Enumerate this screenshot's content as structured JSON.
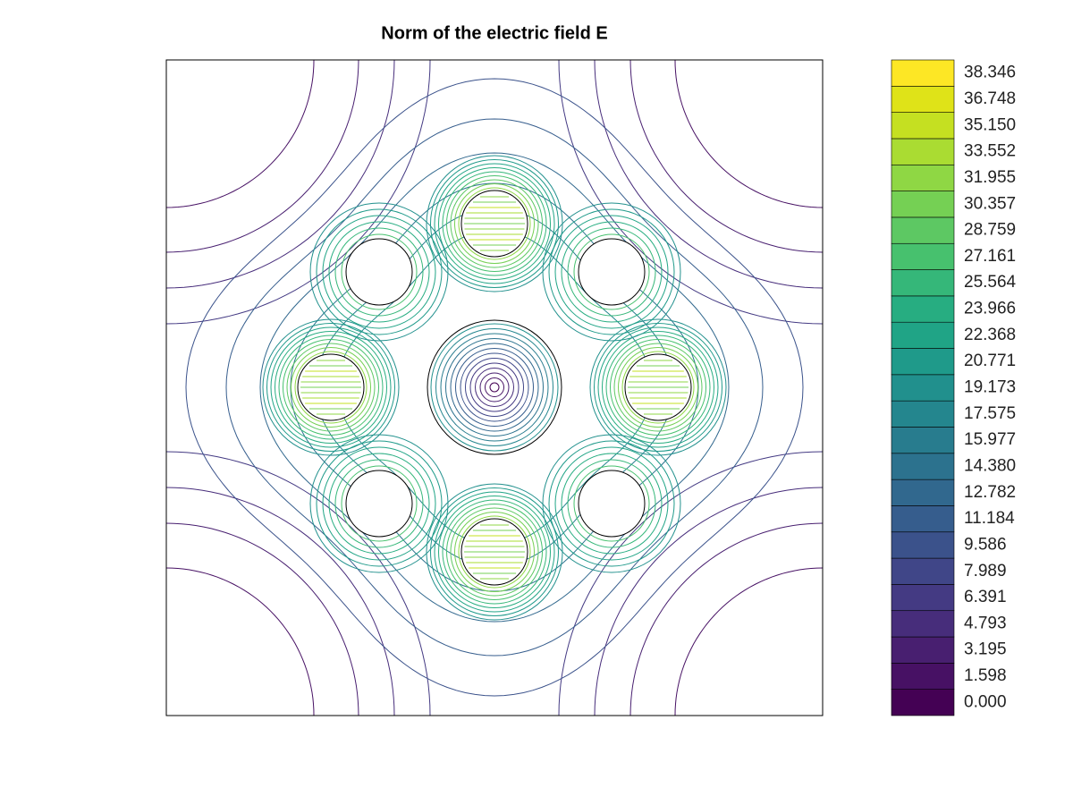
{
  "chart_data": {
    "type": "contour",
    "title": "Norm of the electric field E",
    "levels": [
      {
        "value": 0,
        "label": "0.000"
      },
      {
        "value": 1.598,
        "label": "1.598"
      },
      {
        "value": 3.195,
        "label": "3.195"
      },
      {
        "value": 4.793,
        "label": "4.793"
      },
      {
        "value": 6.391,
        "label": "6.391"
      },
      {
        "value": 7.989,
        "label": "7.989"
      },
      {
        "value": 9.586,
        "label": "9.586"
      },
      {
        "value": 11.184,
        "label": "11.184"
      },
      {
        "value": 12.782,
        "label": "12.782"
      },
      {
        "value": 14.38,
        "label": "14.380"
      },
      {
        "value": 15.977,
        "label": "15.977"
      },
      {
        "value": 17.575,
        "label": "17.575"
      },
      {
        "value": 19.173,
        "label": "19.173"
      },
      {
        "value": 20.771,
        "label": "20.771"
      },
      {
        "value": 22.368,
        "label": "22.368"
      },
      {
        "value": 23.966,
        "label": "23.966"
      },
      {
        "value": 25.564,
        "label": "25.564"
      },
      {
        "value": 27.161,
        "label": "27.161"
      },
      {
        "value": 28.759,
        "label": "28.759"
      },
      {
        "value": 30.357,
        "label": "30.357"
      },
      {
        "value": 31.955,
        "label": "31.955"
      },
      {
        "value": 33.552,
        "label": "33.552"
      },
      {
        "value": 35.15,
        "label": "35.150"
      },
      {
        "value": 36.748,
        "label": "36.748"
      },
      {
        "value": 38.346,
        "label": "38.346"
      }
    ],
    "colors": [
      "#440154",
      "#471164",
      "#481f70",
      "#472d7b",
      "#443a83",
      "#404688",
      "#3b528b",
      "#365d8d",
      "#31688e",
      "#2c728e",
      "#287c8e",
      "#24868e",
      "#21908d",
      "#1f9a8a",
      "#20a486",
      "#27ad81",
      "#35b779",
      "#47c16e",
      "#5dc863",
      "#75d054",
      "#8fd744",
      "#aadc32",
      "#c5e021",
      "#dfe318",
      "#fde725"
    ]
  }
}
